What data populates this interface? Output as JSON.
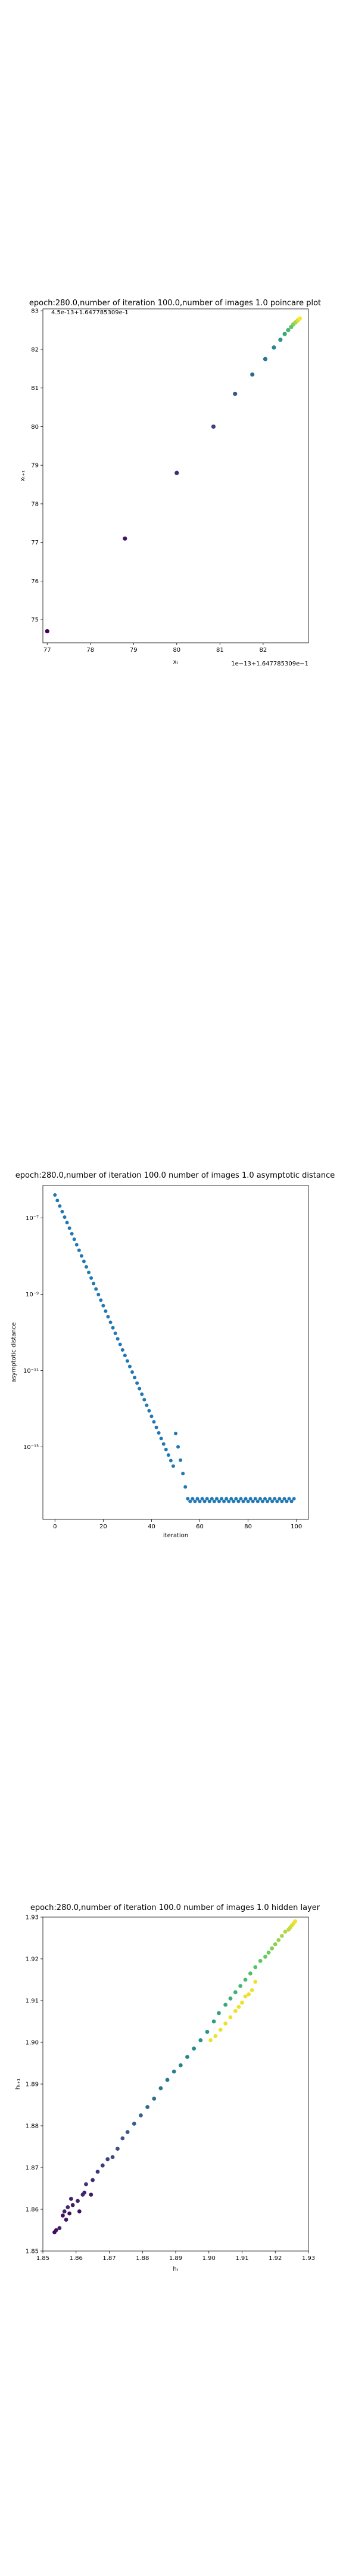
{
  "chart_data": [
    {
      "type": "scatter",
      "title": "epoch:280.0,number of iteration 100.0,number of images 1.0 poincare plot",
      "annotation": "4.5e-13+1.647785309e-1",
      "xlabel": "xₜ",
      "ylabel": "xₜ₊₁",
      "xlim": [
        76.9,
        83.05
      ],
      "ylim": [
        74.4,
        83.05
      ],
      "xticks": [
        77,
        78,
        79,
        80,
        81,
        82
      ],
      "yticks": [
        75,
        76,
        77,
        78,
        79,
        80,
        81,
        82,
        83
      ],
      "offset_text": "1e−13+1.647785309e−1",
      "colormap": "viridis",
      "x": [
        77.0,
        78.8,
        80.0,
        80.85,
        81.35,
        81.75,
        82.05,
        82.25,
        82.4,
        82.5,
        82.58,
        82.65,
        82.7,
        82.75,
        82.8,
        82.85
      ],
      "y": [
        74.7,
        77.1,
        78.8,
        80.0,
        80.85,
        81.35,
        81.75,
        82.05,
        82.25,
        82.4,
        82.5,
        82.58,
        82.65,
        82.7,
        82.75,
        82.8
      ]
    },
    {
      "type": "scatter",
      "title": "epoch:280.0,number of iteration 100.0  number of images 1.0 asymptotic distance",
      "xlabel": "iteration",
      "ylabel": "asymptotic distance",
      "yscale": "log",
      "xlim": [
        -5,
        105
      ],
      "ylim_log10": [
        -14.9,
        -6.15
      ],
      "xticks": [
        0,
        20,
        40,
        60,
        80,
        100
      ],
      "yticks": [
        "10⁻⁷",
        "10⁻⁹",
        "10⁻¹¹",
        "10⁻¹³"
      ],
      "ytick_values_log10": [
        -7,
        -9,
        -11,
        -13
      ],
      "color": "#1f77b4",
      "decay": {
        "start_x": 0,
        "start_log10": -6.4,
        "slope_log10_per_iter": -0.145,
        "until_x": 55
      },
      "floor": {
        "from_x": 55,
        "to_x": 99,
        "log10": -14.4
      }
    },
    {
      "type": "scatter",
      "title": "epoch:280.0,number of iteration 100.0  number of images 1.0 hidden layer",
      "xlabel": "hₜ",
      "ylabel": "hₜ₊₁",
      "xlim": [
        1.85,
        1.93
      ],
      "ylim": [
        1.85,
        1.93
      ],
      "xticks": [
        "1.85",
        "1.86",
        "1.87",
        "1.88",
        "1.89",
        "1.90",
        "1.91",
        "1.92",
        "1.93"
      ],
      "yticks": [
        "1.85",
        "1.86",
        "1.87",
        "1.88",
        "1.89",
        "1.90",
        "1.91",
        "1.92",
        "1.93"
      ],
      "xtick_values": [
        1.85,
        1.86,
        1.87,
        1.88,
        1.89,
        1.9,
        1.91,
        1.92,
        1.93
      ],
      "colormap": "viridis",
      "points": [
        [
          1.8535,
          1.8545,
          0.02
        ],
        [
          1.854,
          1.855,
          0.05
        ],
        [
          1.855,
          1.8555,
          0.08
        ],
        [
          1.856,
          1.8585,
          0.04
        ],
        [
          1.8565,
          1.8595,
          0.1
        ],
        [
          1.857,
          1.8575,
          0.06
        ],
        [
          1.8575,
          1.8605,
          0.12
        ],
        [
          1.858,
          1.859,
          0.03
        ],
        [
          1.8585,
          1.8625,
          0.09
        ],
        [
          1.859,
          1.861,
          0.07
        ],
        [
          1.8605,
          1.862,
          0.11
        ],
        [
          1.861,
          1.8595,
          0.05
        ],
        [
          1.862,
          1.8635,
          0.13
        ],
        [
          1.8625,
          1.864,
          0.1
        ],
        [
          1.863,
          1.866,
          0.15
        ],
        [
          1.8645,
          1.8635,
          0.08
        ],
        [
          1.865,
          1.867,
          0.14
        ],
        [
          1.8665,
          1.869,
          0.16
        ],
        [
          1.868,
          1.8705,
          0.18
        ],
        [
          1.8695,
          1.872,
          0.2
        ],
        [
          1.871,
          1.8725,
          0.22
        ],
        [
          1.8725,
          1.8745,
          0.24
        ],
        [
          1.874,
          1.877,
          0.26
        ],
        [
          1.8755,
          1.8785,
          0.28
        ],
        [
          1.8775,
          1.8805,
          0.3
        ],
        [
          1.8795,
          1.8825,
          0.32
        ],
        [
          1.8815,
          1.8845,
          0.34
        ],
        [
          1.8835,
          1.8865,
          0.36
        ],
        [
          1.8855,
          1.889,
          0.38
        ],
        [
          1.8875,
          1.891,
          0.4
        ],
        [
          1.8895,
          1.893,
          0.42
        ],
        [
          1.8915,
          1.8945,
          0.44
        ],
        [
          1.8935,
          1.8965,
          0.46
        ],
        [
          1.8955,
          1.8985,
          0.48
        ],
        [
          1.8975,
          1.9005,
          0.5
        ],
        [
          1.8995,
          1.9025,
          0.52
        ],
        [
          1.9015,
          1.905,
          0.55
        ],
        [
          1.903,
          1.907,
          0.57
        ],
        [
          1.905,
          1.909,
          0.6
        ],
        [
          1.9065,
          1.9105,
          0.62
        ],
        [
          1.908,
          1.912,
          0.64
        ],
        [
          1.9095,
          1.9135,
          0.66
        ],
        [
          1.911,
          1.915,
          0.68
        ],
        [
          1.9125,
          1.9165,
          0.7
        ],
        [
          1.914,
          1.918,
          0.72
        ],
        [
          1.9155,
          1.9195,
          0.74
        ],
        [
          1.917,
          1.9205,
          0.76
        ],
        [
          1.918,
          1.9215,
          0.78
        ],
        [
          1.919,
          1.9225,
          0.8
        ],
        [
          1.92,
          1.9235,
          0.82
        ],
        [
          1.921,
          1.9245,
          0.84
        ],
        [
          1.922,
          1.9255,
          0.86
        ],
        [
          1.923,
          1.9265,
          0.88
        ],
        [
          1.924,
          1.927,
          0.9
        ],
        [
          1.9245,
          1.9275,
          0.92
        ],
        [
          1.925,
          1.928,
          0.94
        ],
        [
          1.9255,
          1.9285,
          0.96
        ],
        [
          1.926,
          1.929,
          0.98
        ],
        [
          1.9005,
          1.9005,
          0.97
        ],
        [
          1.902,
          1.9015,
          0.97
        ],
        [
          1.9035,
          1.903,
          0.97
        ],
        [
          1.905,
          1.9045,
          0.97
        ],
        [
          1.9065,
          1.906,
          0.97
        ],
        [
          1.908,
          1.9075,
          0.97
        ],
        [
          1.909,
          1.9085,
          0.97
        ],
        [
          1.91,
          1.9095,
          0.97
        ],
        [
          1.911,
          1.911,
          0.97
        ],
        [
          1.912,
          1.9115,
          0.97
        ],
        [
          1.913,
          1.9125,
          0.97
        ],
        [
          1.914,
          1.9145,
          0.97
        ]
      ]
    }
  ]
}
